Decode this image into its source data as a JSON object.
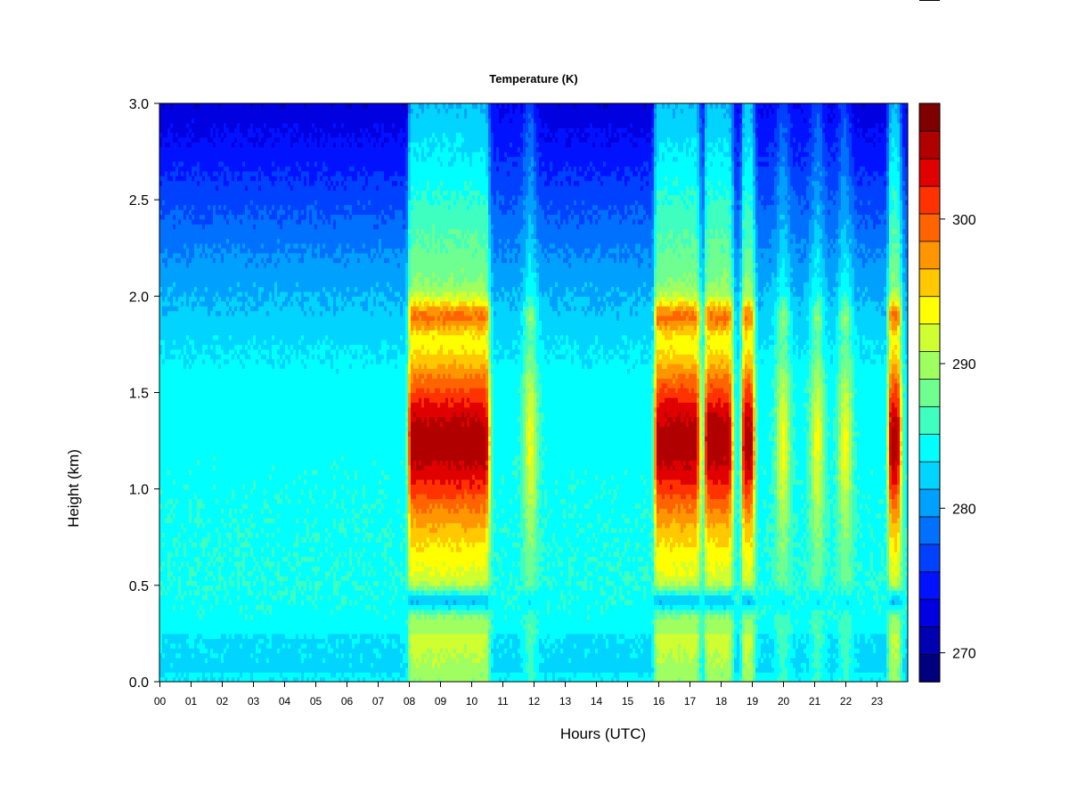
{
  "chart_data": {
    "type": "heatmap",
    "title": "Temperature (K)",
    "xlabel": "Hours (UTC)",
    "ylabel": "Height (km)",
    "x_ticks": [
      "00",
      "01",
      "02",
      "03",
      "04",
      "05",
      "06",
      "07",
      "08",
      "09",
      "10",
      "11",
      "12",
      "13",
      "14",
      "15",
      "16",
      "17",
      "18",
      "19",
      "20",
      "21",
      "22",
      "23"
    ],
    "xlim": [
      0,
      24
    ],
    "y_ticks": [
      "0.0",
      "0.5",
      "1.0",
      "1.5",
      "2.0",
      "2.5",
      "3.0"
    ],
    "ylim": [
      0,
      3.0
    ],
    "colorbar": {
      "ticks": [
        "270",
        "280",
        "290",
        "300"
      ],
      "range": [
        268,
        308
      ],
      "levels": 20,
      "colors": [
        "#00007F",
        "#0000B0",
        "#0000E0",
        "#0012FF",
        "#0040FF",
        "#0070FF",
        "#00A0FF",
        "#00D4FF",
        "#00FFFF",
        "#3FFFC0",
        "#6FFF90",
        "#9FFF60",
        "#CFFF30",
        "#FFFF00",
        "#FFC800",
        "#FF9600",
        "#FF6400",
        "#FF3200",
        "#E00000",
        "#B00000",
        "#7F0000"
      ]
    },
    "warm_episodes_hours": [
      [
        8.0,
        10.6
      ],
      [
        15.9,
        17.35
      ],
      [
        17.5,
        18.4
      ],
      [
        18.7,
        19.1
      ],
      [
        23.4,
        23.8
      ]
    ],
    "warm_core_heights_km": [
      1.25,
      1.9
    ],
    "grid": false,
    "legend": "colorbar-right"
  }
}
